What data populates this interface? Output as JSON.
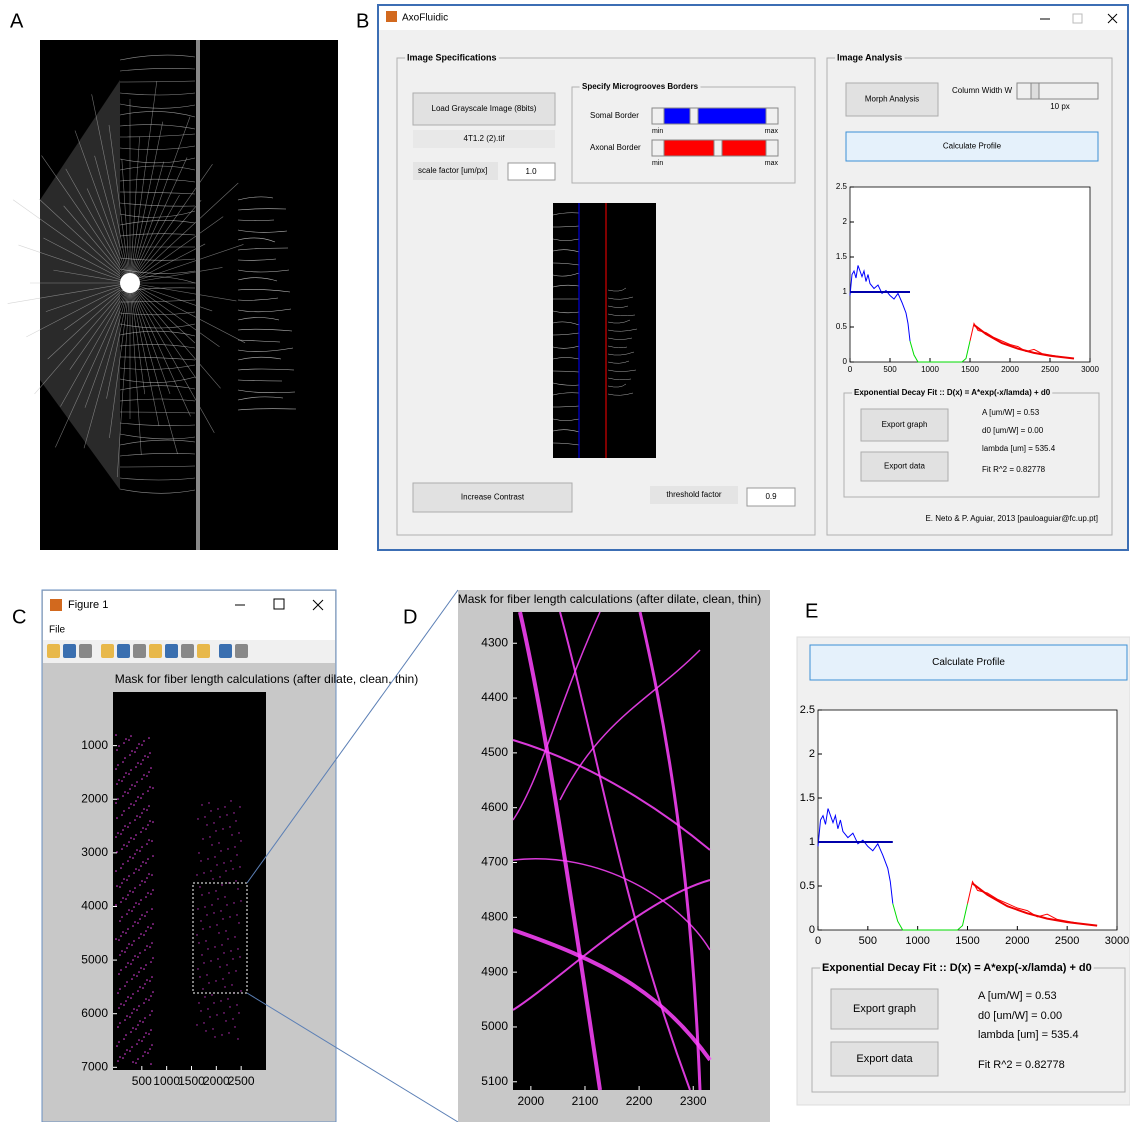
{
  "panel_labels": [
    "A",
    "B",
    "C",
    "D",
    "E"
  ],
  "axofluidic": {
    "window_title": "AxoFluidic",
    "image_specifications": {
      "title": "Image Specifications",
      "load_button": "Load Grayscale Image (8bits)",
      "file_name": "4T1.2 (2).tif",
      "scale_factor_label": "scale factor [um/px]",
      "scale_factor_value": "1.0",
      "borders": {
        "title": "Specify Microgrooves Borders",
        "somal_label": "Somal Border",
        "axonal_label": "Axonal Border",
        "min": "min",
        "max": "max"
      },
      "increase_contrast_button": "Increase Contrast",
      "threshold_label": "threshold factor",
      "threshold_value": "0.9"
    },
    "image_analysis": {
      "title": "Image Analysis",
      "morph_button": "Morph Analysis",
      "column_width_label": "Column Width W",
      "column_width_value": "10 px",
      "calculate_button": "Calculate Profile",
      "fit": {
        "title": "Exponential Decay Fit :: D(x) = A*exp(-x/lamda) + d0",
        "export_graph": "Export graph",
        "export_data": "Export data",
        "results": [
          "A [um/W] = 0.53",
          "d0 [um/W] = 0.00",
          "lambda [um] = 535.4",
          "Fit R^2 = 0.82778"
        ]
      },
      "credit": "E. Neto & P. Aguiar, 2013 [pauloaguiar@fc.up.pt]"
    }
  },
  "figure_window": {
    "title": "Figure 1",
    "menu": "File"
  },
  "chart_data": [
    {
      "type": "line",
      "xlim": [
        0,
        3000
      ],
      "ylim": [
        0,
        2.5
      ],
      "xticks": [
        0,
        500,
        1000,
        1500,
        2000,
        2500,
        3000
      ],
      "yticks": [
        0,
        0.5,
        1,
        1.5,
        2,
        2.5
      ],
      "series": [
        {
          "color": "#0000ff",
          "line_width": 1,
          "x": [
            0,
            25,
            50,
            75,
            100,
            125,
            150,
            175,
            200,
            225,
            250,
            300,
            350,
            400,
            450,
            500,
            550,
            600,
            650,
            700,
            725,
            750
          ],
          "values": [
            0.95,
            1.25,
            1.3,
            1.2,
            1.38,
            1.3,
            1.22,
            1.3,
            1.15,
            1.25,
            1.12,
            1.05,
            1.1,
            0.98,
            1.02,
            0.95,
            0.9,
            0.98,
            0.85,
            0.7,
            0.55,
            0.3
          ]
        },
        {
          "color": "#00dd00",
          "line_width": 1,
          "x": [
            750,
            800,
            850,
            900,
            1000,
            1200,
            1400,
            1450,
            1500
          ],
          "values": [
            0.3,
            0.1,
            0,
            0,
            0,
            0,
            0,
            0.05,
            0.3
          ]
        },
        {
          "color": "#ff0000",
          "line_width": 1,
          "x": [
            1500,
            1550,
            1600,
            1700,
            1800,
            1900,
            2000,
            2100,
            2200,
            2300,
            2400,
            2500,
            2600,
            2700,
            2800
          ],
          "values": [
            0.3,
            0.55,
            0.45,
            0.42,
            0.35,
            0.3,
            0.25,
            0.22,
            0.15,
            0.18,
            0.12,
            0.1,
            0.08,
            0.06,
            0.05
          ]
        },
        {
          "color": "#0000aa",
          "line_width": 2,
          "x": [
            0,
            750
          ],
          "values": [
            1,
            1
          ]
        },
        {
          "color": "#ee0000",
          "line_width": 2,
          "x": [
            1550,
            1700,
            1900,
            2100,
            2300,
            2500,
            2800
          ],
          "values": [
            0.53,
            0.4,
            0.27,
            0.19,
            0.13,
            0.09,
            0.05
          ]
        }
      ]
    },
    {
      "type": "image",
      "title": "Mask for fiber length calculations (after dilate, clean, thin)",
      "xlim": [
        -80,
        3000
      ],
      "ylim": [
        0,
        7050
      ],
      "y_inverted": true,
      "xticks": [
        500,
        1000,
        1500,
        2000,
        2500
      ],
      "yticks": [
        1000,
        2000,
        3000,
        4000,
        5000,
        6000,
        7000
      ]
    },
    {
      "type": "image",
      "title": "Mask for fiber length calculations (after dilate, clean, thin)",
      "xlim": [
        1967,
        2331
      ],
      "ylim": [
        4243,
        5115
      ],
      "y_inverted": true,
      "xticks": [
        2000,
        2100,
        2200,
        2300
      ],
      "yticks": [
        4300,
        4400,
        4500,
        4600,
        4700,
        4800,
        4900,
        5000,
        5100
      ]
    }
  ]
}
